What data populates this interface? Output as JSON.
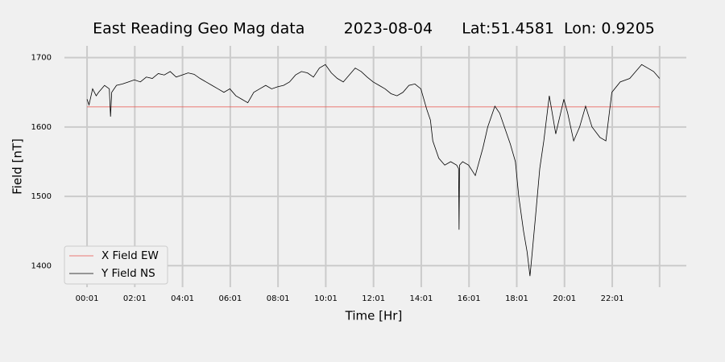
{
  "chart_data": {
    "type": "line",
    "title": "East Reading Geo Mag data        2023-08-04      Lat:51.4581  Lon: 0.9205",
    "xlabel": "Time  [Hr]",
    "ylabel": "Field  [nT]",
    "xlim": [
      -0.93,
      25.12
    ],
    "ylim": [
      1369,
      1717
    ],
    "xticks": [
      {
        "value": 0.0167,
        "label": "00:01"
      },
      {
        "value": 2.0167,
        "label": "02:01"
      },
      {
        "value": 4.0167,
        "label": "04:01"
      },
      {
        "value": 6.0167,
        "label": "06:01"
      },
      {
        "value": 8.0167,
        "label": "08:01"
      },
      {
        "value": 10.0167,
        "label": "10:01"
      },
      {
        "value": 12.0167,
        "label": "12:01"
      },
      {
        "value": 14.0167,
        "label": "14:01"
      },
      {
        "value": 16.0167,
        "label": "16:01"
      },
      {
        "value": 18.0167,
        "label": "18:01"
      },
      {
        "value": 20.0167,
        "label": "20:01"
      },
      {
        "value": 22.0167,
        "label": "22:01"
      },
      24.0
    ],
    "yticks": [
      1400,
      1500,
      1600,
      1700
    ],
    "grid": true,
    "legend": "lower left",
    "series": [
      {
        "name": "X Field EW",
        "color": "#e8514a",
        "x": [
          0.0167,
          24.0
        ],
        "values": [
          1629,
          1629
        ]
      },
      {
        "name": "Y Field NS",
        "color": "#000000",
        "x": [
          0.0167,
          0.1,
          0.25,
          0.4,
          0.5,
          0.75,
          0.95,
          1.0,
          1.05,
          1.25,
          1.5,
          1.75,
          2.0,
          2.25,
          2.5,
          2.75,
          3.0,
          3.25,
          3.5,
          3.75,
          4.0,
          4.25,
          4.5,
          4.75,
          5.0,
          5.25,
          5.5,
          5.75,
          6.0,
          6.25,
          6.5,
          6.75,
          7.0,
          7.25,
          7.5,
          7.75,
          8.0,
          8.25,
          8.5,
          8.75,
          9.0,
          9.25,
          9.5,
          9.75,
          10.0,
          10.25,
          10.5,
          10.75,
          11.0,
          11.25,
          11.5,
          11.75,
          12.0,
          12.25,
          12.5,
          12.75,
          13.0,
          13.25,
          13.5,
          13.75,
          14.0,
          14.25,
          14.4,
          14.5,
          14.75,
          15.0,
          15.25,
          15.5,
          15.58,
          15.6,
          15.62,
          15.75,
          16.0,
          16.28,
          16.6,
          16.8,
          17.1,
          17.3,
          17.5,
          17.75,
          17.96,
          18.1,
          18.3,
          18.45,
          18.57,
          18.64,
          18.8,
          18.98,
          19.15,
          19.38,
          19.65,
          19.99,
          20.15,
          20.4,
          20.65,
          20.9,
          21.17,
          21.5,
          21.75,
          22.0,
          22.35,
          22.75,
          23.0,
          23.25,
          23.5,
          23.75,
          24.0
        ],
        "values": [
          1640,
          1632,
          1655,
          1645,
          1650,
          1660,
          1655,
          1615,
          1650,
          1660,
          1662,
          1665,
          1668,
          1665,
          1672,
          1670,
          1677,
          1675,
          1680,
          1672,
          1675,
          1678,
          1676,
          1670,
          1665,
          1660,
          1655,
          1650,
          1655,
          1645,
          1640,
          1635,
          1650,
          1655,
          1660,
          1655,
          1658,
          1660,
          1665,
          1675,
          1680,
          1678,
          1672,
          1685,
          1690,
          1678,
          1670,
          1665,
          1675,
          1685,
          1680,
          1672,
          1665,
          1660,
          1655,
          1648,
          1645,
          1650,
          1660,
          1662,
          1655,
          1625,
          1610,
          1580,
          1555,
          1545,
          1550,
          1545,
          1540,
          1452,
          1545,
          1550,
          1545,
          1530,
          1570,
          1600,
          1630,
          1620,
          1600,
          1575,
          1550,
          1500,
          1450,
          1420,
          1385,
          1410,
          1470,
          1540,
          1580,
          1645,
          1590,
          1640,
          1620,
          1580,
          1600,
          1630,
          1600,
          1585,
          1580,
          1650,
          1665,
          1670,
          1680,
          1690,
          1685,
          1680,
          1670
        ]
      }
    ]
  }
}
